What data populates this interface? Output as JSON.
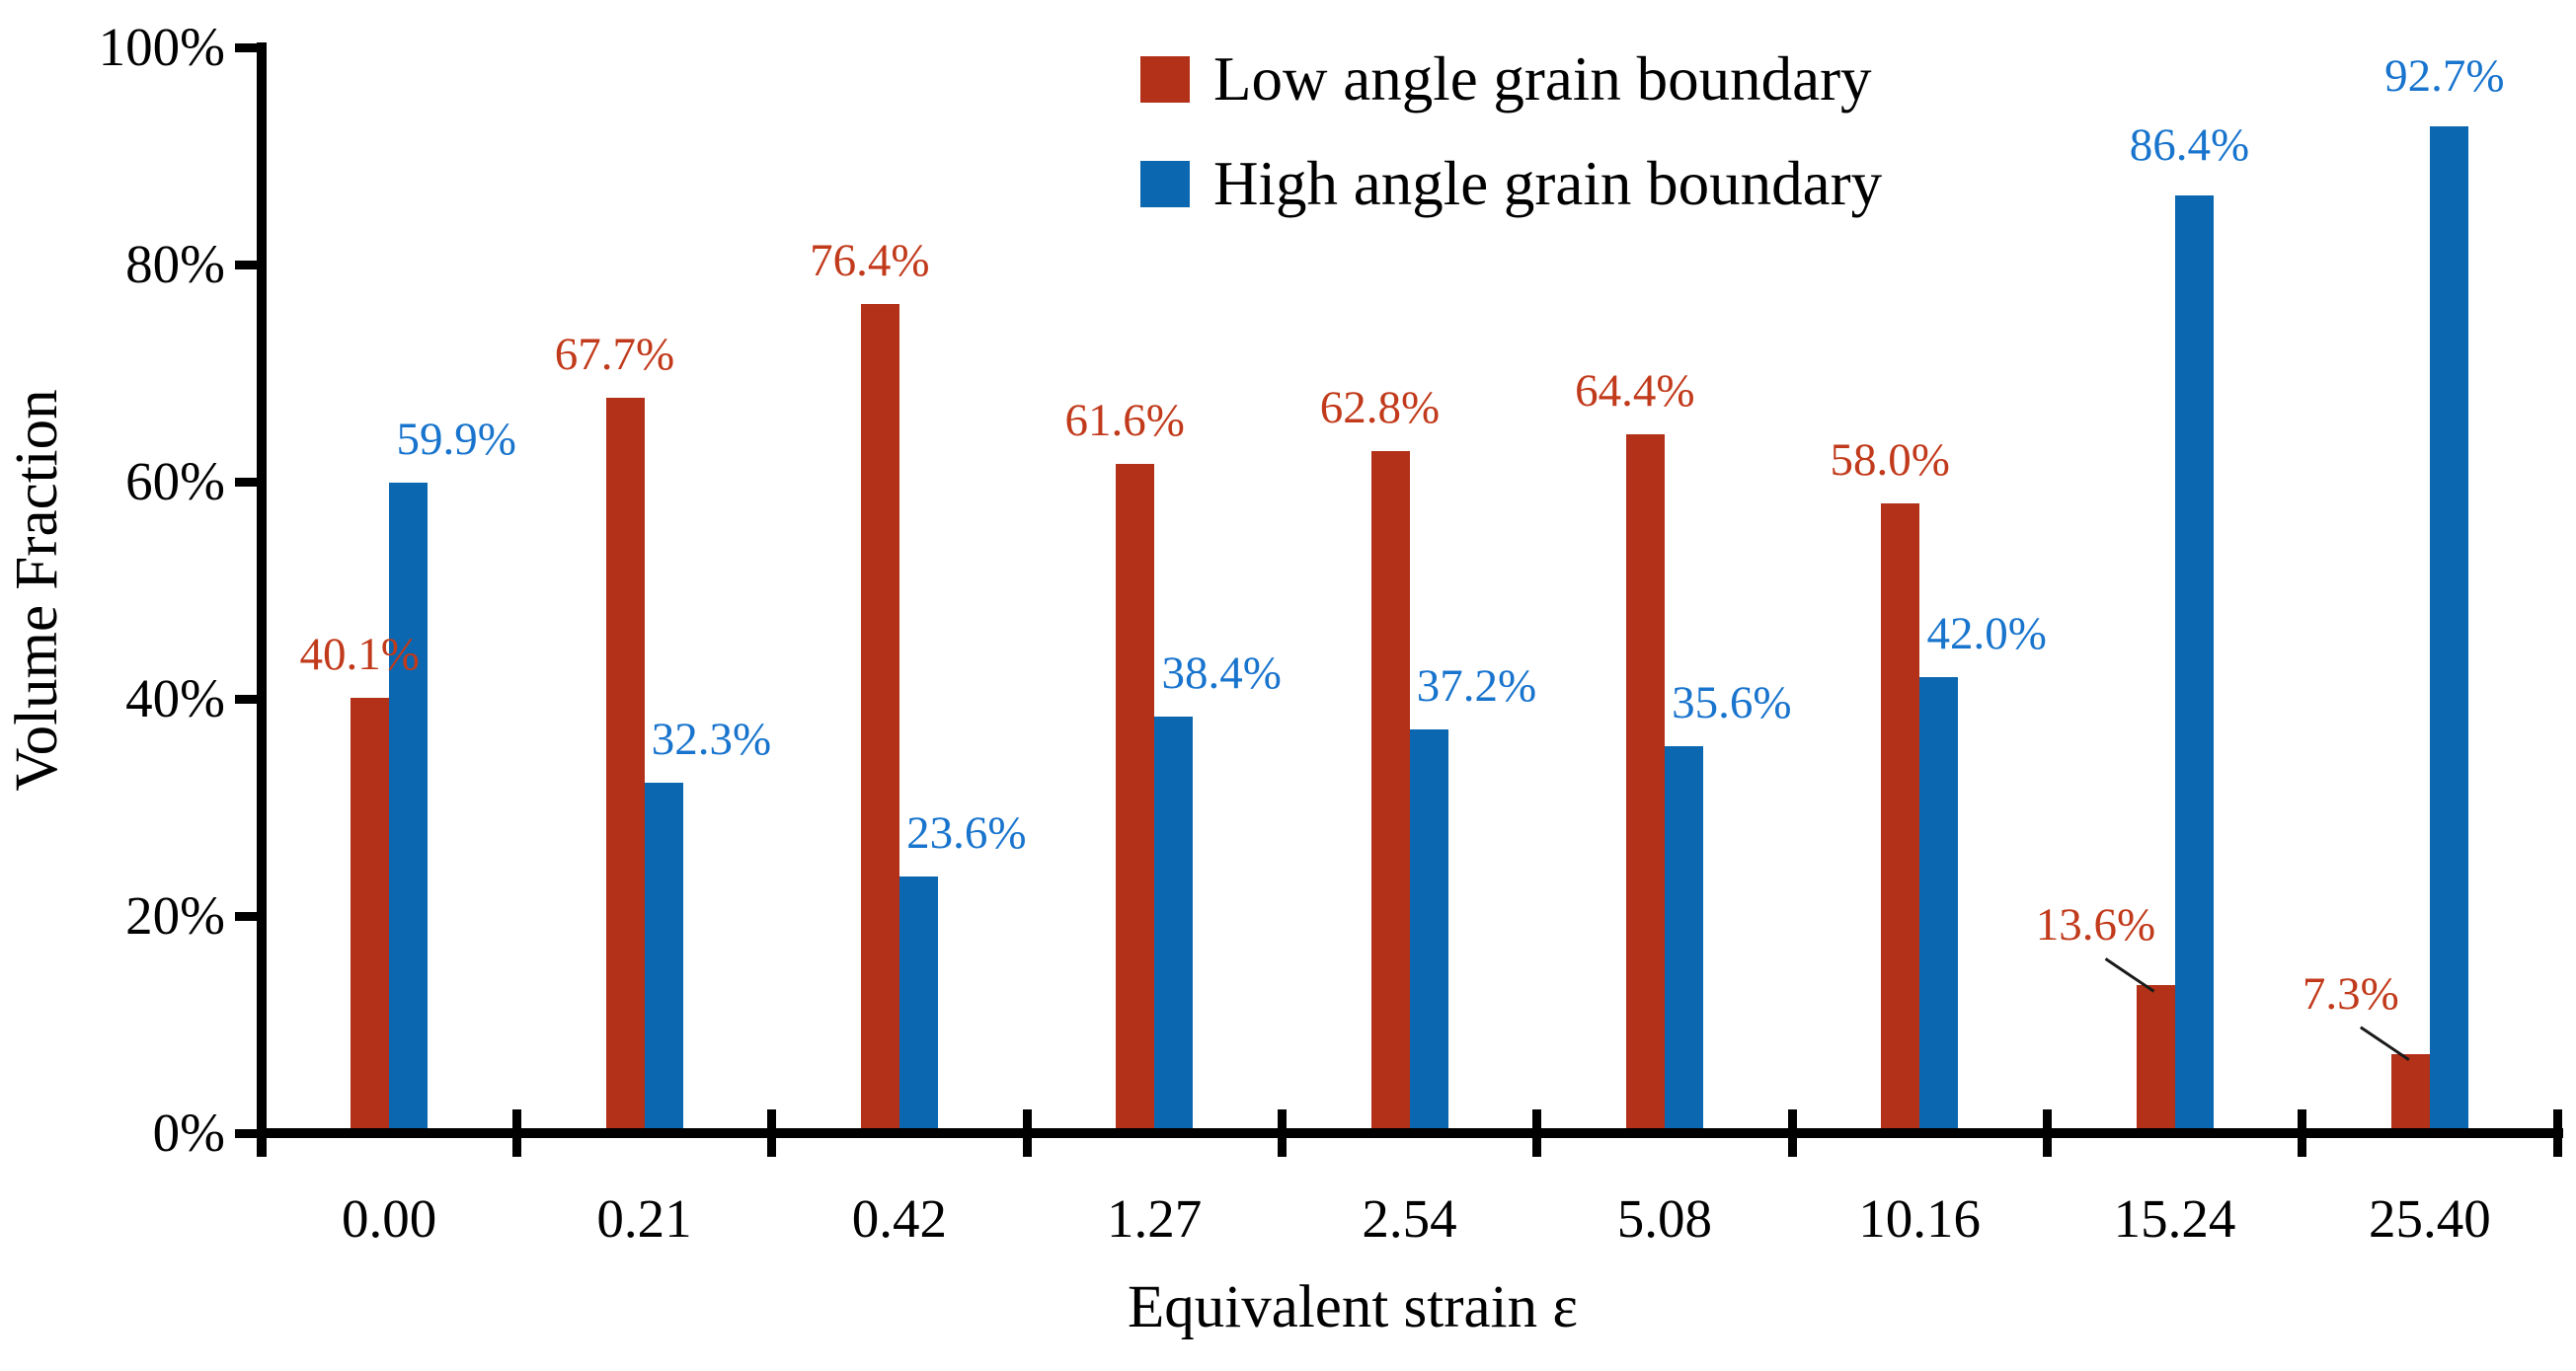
{
  "chart_data": {
    "type": "bar",
    "title": "",
    "xlabel": "Equivalent strain ε",
    "ylabel": "Volume Fraction",
    "ylim": [
      0,
      100
    ],
    "grid": false,
    "legend_position": "top-center",
    "yticks": [
      "0%",
      "20%",
      "40%",
      "60%",
      "80%",
      "100%"
    ],
    "categories": [
      "0.00",
      "0.21",
      "0.42",
      "1.27",
      "2.54",
      "5.08",
      "10.16",
      "15.24",
      "25.40"
    ],
    "series": [
      {
        "name": "Low angle grain boundary",
        "color": "#b23118",
        "label_color": "#c13a1b",
        "values": [
          40.1,
          67.7,
          76.4,
          61.6,
          62.8,
          64.4,
          58.0,
          13.6,
          7.3
        ],
        "labels": [
          "40.1%",
          "67.7%",
          "76.4%",
          "61.6%",
          "62.8%",
          "64.4%",
          "58.0%",
          "13.6%",
          "7.3%"
        ]
      },
      {
        "name": "High angle grain boundary",
        "color": "#0b67af",
        "label_color": "#1874cd",
        "values": [
          59.9,
          32.3,
          23.6,
          38.4,
          37.2,
          35.6,
          42.0,
          86.4,
          92.7
        ],
        "labels": [
          "59.9%",
          "32.3%",
          "23.6%",
          "38.4%",
          "37.2%",
          "35.6%",
          "42.0%",
          "86.4%",
          "92.7%"
        ]
      }
    ],
    "axis_color": "#000000",
    "leader_line_color": "#1a1a1a"
  }
}
